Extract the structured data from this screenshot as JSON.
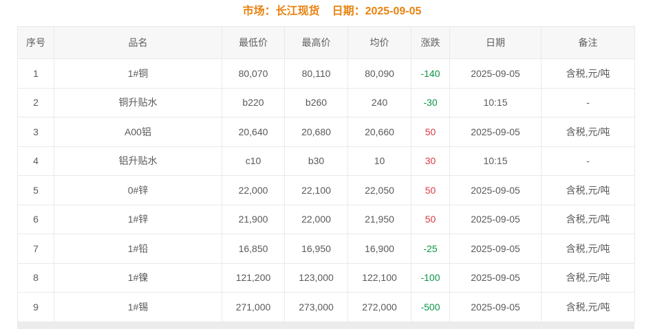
{
  "page_title": {
    "market": "市场：长江现货",
    "date": "日期：2025-09-05"
  },
  "colors": {
    "title_orange": "#e8820e",
    "up_red": "#dd3a44",
    "down_green": "#0a9447",
    "header_bg": "#f7f7f7",
    "border": "#e9e9e9",
    "text": "#595959",
    "footer_strip": "#ececec"
  },
  "table": {
    "columns": [
      "序号",
      "品名",
      "最低价",
      "最高价",
      "均价",
      "涨跌",
      "日期",
      "备注"
    ],
    "rows": [
      {
        "no": "1",
        "name": "1#铜",
        "low": "80,070",
        "high": "80,110",
        "avg": "80,090",
        "change": "-140",
        "date": "2025-09-05",
        "note": "含税,元/吨"
      },
      {
        "no": "2",
        "name": "铜升贴水",
        "low": "b220",
        "high": "b260",
        "avg": "240",
        "change": "-30",
        "date": "10:15",
        "note": "-"
      },
      {
        "no": "3",
        "name": "A00铝",
        "low": "20,640",
        "high": "20,680",
        "avg": "20,660",
        "change": "50",
        "date": "2025-09-05",
        "note": "含税,元/吨"
      },
      {
        "no": "4",
        "name": "铝升贴水",
        "low": "c10",
        "high": "b30",
        "avg": "10",
        "change": "30",
        "date": "10:15",
        "note": "-"
      },
      {
        "no": "5",
        "name": "0#锌",
        "low": "22,000",
        "high": "22,100",
        "avg": "22,050",
        "change": "50",
        "date": "2025-09-05",
        "note": "含税,元/吨"
      },
      {
        "no": "6",
        "name": "1#锌",
        "low": "21,900",
        "high": "22,000",
        "avg": "21,950",
        "change": "50",
        "date": "2025-09-05",
        "note": "含税,元/吨"
      },
      {
        "no": "7",
        "name": "1#铅",
        "low": "16,850",
        "high": "16,950",
        "avg": "16,900",
        "change": "-25",
        "date": "2025-09-05",
        "note": "含税,元/吨"
      },
      {
        "no": "8",
        "name": "1#镍",
        "low": "121,200",
        "high": "123,000",
        "avg": "122,100",
        "change": "-100",
        "date": "2025-09-05",
        "note": "含税,元/吨"
      },
      {
        "no": "9",
        "name": "1#锡",
        "low": "271,000",
        "high": "273,000",
        "avg": "272,000",
        "change": "-500",
        "date": "2025-09-05",
        "note": "含税,元/吨"
      }
    ]
  }
}
